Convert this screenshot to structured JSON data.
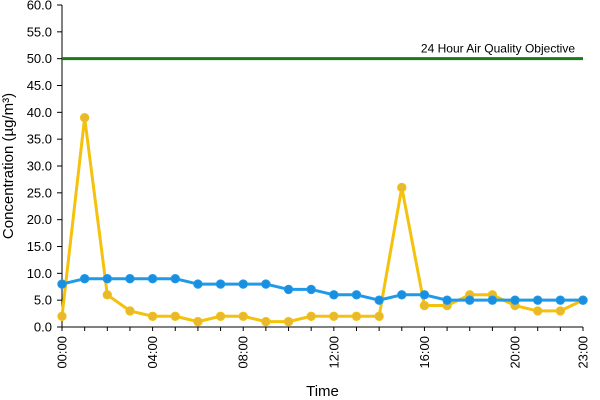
{
  "chart_data": {
    "type": "line",
    "xlabel": "Time",
    "ylabel": "Concentration (µg/m³)",
    "ylim": [
      0,
      60
    ],
    "yticks": [
      "0.0",
      "5.0",
      "10.0",
      "15.0",
      "20.0",
      "25.0",
      "30.0",
      "35.0",
      "40.0",
      "45.0",
      "50.0",
      "55.0",
      "60.0"
    ],
    "x": [
      0,
      1,
      2,
      3,
      4,
      5,
      6,
      7,
      8,
      9,
      10,
      11,
      12,
      13,
      14,
      15,
      16,
      17,
      18,
      19,
      20,
      21,
      22,
      23
    ],
    "xticks": [
      {
        "hour": 0,
        "label": "00:00"
      },
      {
        "hour": 4,
        "label": "04:00"
      },
      {
        "hour": 8,
        "label": "08:00"
      },
      {
        "hour": 12,
        "label": "12:00"
      },
      {
        "hour": 16,
        "label": "16:00"
      },
      {
        "hour": 20,
        "label": "20:00"
      },
      {
        "hour": 23,
        "label": "23:00"
      }
    ],
    "series": [
      {
        "color": "#f4c20d",
        "marker": "#e8b830",
        "values": [
          2,
          39,
          6,
          3,
          2,
          2,
          1,
          2,
          2,
          1,
          1,
          2,
          2,
          2,
          2,
          26,
          4,
          4,
          6,
          6,
          4,
          3,
          3,
          5
        ]
      },
      {
        "color": "#1e9ae8",
        "marker": "#1a8ee0",
        "values": [
          8,
          9,
          9,
          9,
          9,
          9,
          8,
          8,
          8,
          8,
          7,
          7,
          6,
          6,
          5,
          6,
          6,
          5,
          5,
          5,
          5,
          5,
          5,
          5
        ]
      }
    ],
    "reference_line": {
      "value": 50,
      "label": "24 Hour Air Quality Objective",
      "color": "#1a7a1a"
    },
    "grid": false,
    "legend": "none"
  }
}
